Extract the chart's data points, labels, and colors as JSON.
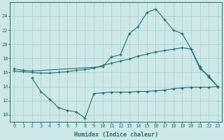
{
  "x_ticks": [
    0,
    1,
    2,
    3,
    4,
    5,
    6,
    7,
    8,
    9,
    10,
    11,
    12,
    13,
    14,
    15,
    16,
    17,
    18,
    19,
    20,
    21,
    22,
    23
  ],
  "line1_x": [
    0,
    1,
    2,
    10,
    11,
    12,
    13,
    14,
    15,
    16,
    17,
    18,
    19,
    20,
    21,
    22,
    23
  ],
  "line1_y": [
    16.5,
    16.3,
    16.2,
    16.8,
    18.2,
    18.5,
    21.5,
    22.5,
    24.5,
    25.0,
    23.5,
    22.0,
    21.5,
    19.3,
    16.8,
    15.3,
    14.0
  ],
  "line2_x": [
    0,
    1,
    2,
    3,
    4,
    5,
    6,
    7,
    8,
    9,
    10,
    11,
    12,
    13,
    14,
    15,
    16,
    17,
    18,
    19,
    20,
    21,
    22,
    23
  ],
  "line2_y": [
    16.2,
    16.1,
    16.0,
    15.9,
    15.9,
    16.0,
    16.1,
    16.3,
    16.4,
    16.6,
    17.0,
    17.3,
    17.6,
    17.9,
    18.3,
    18.6,
    18.9,
    19.1,
    19.3,
    19.5,
    19.3,
    16.5,
    15.5,
    14.0
  ],
  "line3_x": [
    2,
    3,
    4,
    5,
    6,
    7,
    8,
    9,
    10,
    11,
    12,
    13,
    14,
    15,
    16,
    17,
    18,
    19,
    20,
    21,
    22,
    23
  ],
  "line3_y": [
    15.2,
    13.3,
    12.2,
    11.0,
    10.6,
    10.4,
    9.5,
    13.0,
    13.1,
    13.2,
    13.2,
    13.2,
    13.3,
    13.3,
    13.4,
    13.5,
    13.7,
    13.8,
    13.9,
    13.9,
    13.9,
    14.0
  ],
  "color": "#2a6e6e",
  "bg_color": "#cce8e8",
  "grid_color": "#aacccc",
  "xlabel": "Humidex (Indice chaleur)",
  "ylim": [
    9.0,
    26.0
  ],
  "xlim": [
    -0.5,
    23.5
  ],
  "yticks": [
    10,
    12,
    14,
    16,
    18,
    20,
    22,
    24
  ],
  "font_color": "#2a6e6e"
}
